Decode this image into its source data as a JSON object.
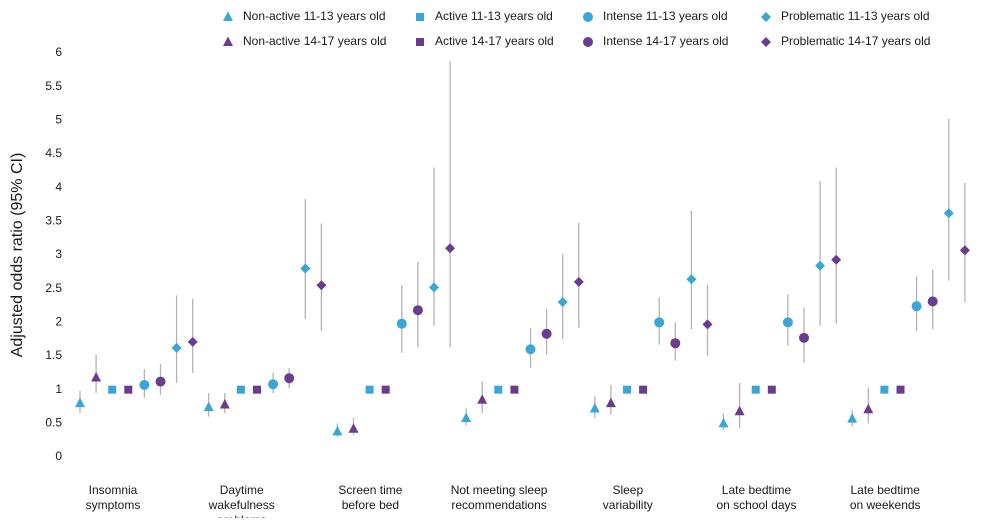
{
  "chart_data": {
    "type": "errorbar",
    "y_label": "Adjusted odds ratio (95% CI)",
    "ylim": [
      0,
      6
    ],
    "yticks": [
      0,
      0.5,
      1,
      1.5,
      2,
      2.5,
      3,
      3.5,
      4,
      4.5,
      5,
      5.5,
      6
    ],
    "categories": [
      [
        "Insomnia",
        "symptoms"
      ],
      [
        "Daytime",
        "wakefulness",
        "problems"
      ],
      [
        "Screen time",
        "before bed"
      ],
      [
        "Not meeting sleep",
        "recommendations"
      ],
      [
        "Sleep",
        "variability"
      ],
      [
        "Late bedtime",
        "on school days"
      ],
      [
        "Late bedtime",
        "on weekends"
      ]
    ],
    "error_color": "#b3b3b3",
    "series": [
      {
        "name": "Non-active 11-13 years old",
        "color": "#3aa6d6",
        "marker": "triangle",
        "values": [
          0.8,
          0.74,
          0.38,
          0.58,
          0.72,
          0.5,
          0.57
        ],
        "lower": [
          0.65,
          0.6,
          0.3,
          0.47,
          0.58,
          0.4,
          0.45
        ],
        "upper": [
          0.98,
          0.95,
          0.5,
          0.72,
          0.9,
          0.65,
          0.7
        ]
      },
      {
        "name": "Non-active 14-17 years old",
        "color": "#6b3c8e",
        "marker": "triangle",
        "values": [
          1.18,
          0.78,
          0.42,
          0.85,
          0.8,
          0.68,
          0.71
        ],
        "lower": [
          0.95,
          0.65,
          0.33,
          0.65,
          0.63,
          0.43,
          0.5
        ],
        "upper": [
          1.52,
          0.95,
          0.58,
          1.12,
          1.07,
          1.1,
          1.03
        ]
      },
      {
        "name": "Active 11-13 years old",
        "color": "#3aa6d6",
        "marker": "square",
        "values": [
          1,
          1,
          1,
          1,
          1,
          1,
          1
        ]
      },
      {
        "name": "Active 14-17 years old",
        "color": "#6b3c8e",
        "marker": "square",
        "values": [
          1,
          1,
          1,
          1,
          1,
          1,
          1
        ]
      },
      {
        "name": "Intense 11-13 years old",
        "color": "#3aa6d6",
        "marker": "circle",
        "values": [
          1.07,
          1.08,
          1.98,
          1.6,
          2.0,
          2.0,
          2.24
        ],
        "lower": [
          0.88,
          0.95,
          1.55,
          1.32,
          1.67,
          1.65,
          1.87
        ],
        "upper": [
          1.3,
          1.25,
          2.55,
          1.92,
          2.37,
          2.42,
          2.68
        ]
      },
      {
        "name": "Intense 14-17 years old",
        "color": "#6b3c8e",
        "marker": "circle",
        "values": [
          1.12,
          1.17,
          2.18,
          1.83,
          1.69,
          1.77,
          2.31
        ],
        "lower": [
          0.92,
          1.02,
          1.63,
          1.52,
          1.43,
          1.4,
          1.9
        ],
        "upper": [
          1.38,
          1.32,
          2.9,
          2.2,
          2.0,
          2.22,
          2.78
        ]
      },
      {
        "name": "Problematic 11-13 years old",
        "color": "#3aa6d6",
        "marker": "diamond",
        "values": [
          1.62,
          2.8,
          2.52,
          2.3,
          2.64,
          2.84,
          3.62
        ],
        "lower": [
          1.1,
          2.05,
          1.95,
          1.75,
          1.9,
          1.95,
          2.62
        ],
        "upper": [
          2.4,
          3.83,
          4.3,
          3.02,
          3.66,
          4.1,
          5.02
        ]
      },
      {
        "name": "Problematic 14-17 years old",
        "color": "#6b3c8e",
        "marker": "diamond",
        "values": [
          1.71,
          2.55,
          3.1,
          2.6,
          1.97,
          2.93,
          3.07
        ],
        "lower": [
          1.25,
          1.87,
          1.63,
          1.92,
          1.5,
          1.98,
          2.3
        ],
        "upper": [
          2.35,
          3.47,
          5.88,
          3.48,
          2.56,
          4.3,
          4.07
        ]
      }
    ]
  }
}
